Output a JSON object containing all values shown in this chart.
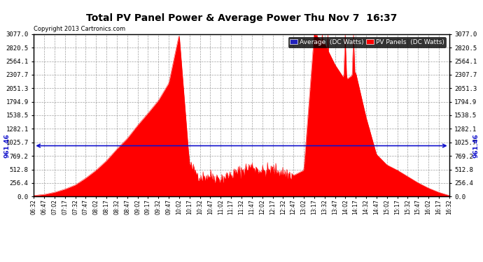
{
  "title": "Total PV Panel Power & Average Power Thu Nov 7  16:37",
  "copyright": "Copyright 2013 Cartronics.com",
  "average_value": 961.46,
  "y_max": 3077.0,
  "y_min": 0.0,
  "y_ticks": [
    0.0,
    256.4,
    512.8,
    769.2,
    1025.7,
    1282.1,
    1538.5,
    1794.9,
    2051.3,
    2307.7,
    2564.1,
    2820.5,
    3077.0
  ],
  "fill_color": "#FF0000",
  "avg_line_color": "#1111CC",
  "background_color": "#FFFFFF",
  "legend_avg_label": "Average  (DC Watts)",
  "legend_pv_label": "PV Panels  (DC Watts)",
  "legend_avg_bg": "#2222BB",
  "legend_pv_bg": "#FF0000",
  "x_ticks": [
    "06:32",
    "06:47",
    "07:02",
    "07:17",
    "07:32",
    "07:47",
    "08:02",
    "08:17",
    "08:32",
    "08:47",
    "09:02",
    "09:17",
    "09:32",
    "09:47",
    "10:02",
    "10:17",
    "10:32",
    "10:47",
    "11:02",
    "11:17",
    "11:32",
    "11:47",
    "12:02",
    "12:17",
    "12:32",
    "12:47",
    "13:02",
    "13:17",
    "13:32",
    "13:47",
    "14:02",
    "14:17",
    "14:32",
    "14:47",
    "15:02",
    "15:17",
    "15:32",
    "15:47",
    "16:02",
    "16:17",
    "16:32"
  ]
}
